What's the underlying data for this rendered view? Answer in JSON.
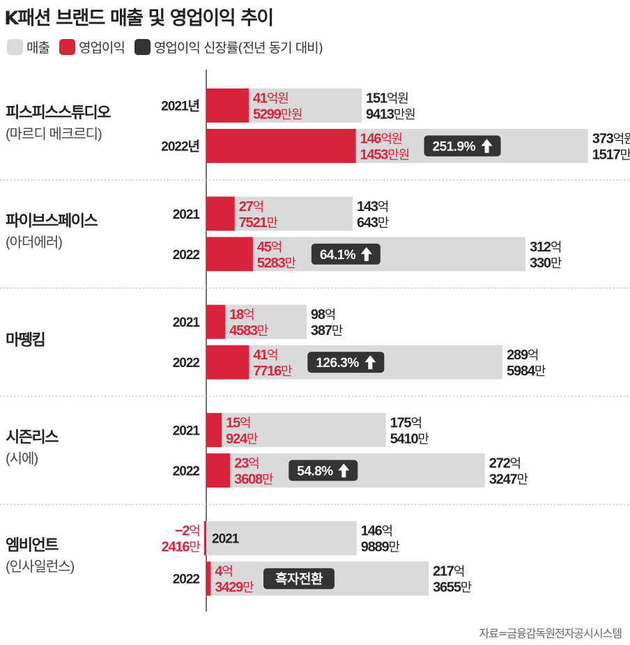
{
  "title": "K패션 브랜드 매출 및 영업이익 추이",
  "legend": [
    {
      "label": "매출",
      "color": "#dadada"
    },
    {
      "label": "영업이익",
      "color": "#d9223b"
    },
    {
      "label": "영업이익 신장률(전년 동기 대비)",
      "color": "#333333"
    }
  ],
  "source": "자료=금융감독원전자공시시스템",
  "chart_data": {
    "type": "bar",
    "orientation": "horizontal",
    "unit": "억원",
    "grid": false,
    "legend_position": "top-left",
    "groups": [
      {
        "company": "피스피스스튜디오",
        "brand": "(마르디 메크르디)",
        "rows": [
          {
            "year": "2021년",
            "revenue": 151.9413,
            "operating_profit": 41.5299,
            "revenue_label": [
              "151",
              "억원",
              "9413",
              "만원"
            ],
            "profit_label": [
              "41",
              "억원",
              "5299",
              "만원"
            ],
            "growth": null
          },
          {
            "year": "2022년",
            "revenue": 373.1517,
            "operating_profit": 146.1453,
            "revenue_label": [
              "373",
              "억원",
              "1517",
              "만원"
            ],
            "profit_label": [
              "146",
              "억원",
              "1453",
              "만원"
            ],
            "growth": "251.9%"
          }
        ]
      },
      {
        "company": "파이브스페이스",
        "brand": "(아더에러)",
        "rows": [
          {
            "year": "2021",
            "revenue": 143.0643,
            "operating_profit": 27.7521,
            "revenue_label": [
              "143",
              "억",
              "643",
              "만"
            ],
            "profit_label": [
              "27",
              "억",
              "7521",
              "만"
            ],
            "growth": null
          },
          {
            "year": "2022",
            "revenue": 312.033,
            "operating_profit": 45.5283,
            "revenue_label": [
              "312",
              "억",
              "330",
              "만"
            ],
            "profit_label": [
              "45",
              "억",
              "5283",
              "만"
            ],
            "growth": "64.1%"
          }
        ]
      },
      {
        "company": "마뗑킴",
        "brand": "",
        "rows": [
          {
            "year": "2021",
            "revenue": 98.0387,
            "operating_profit": 18.4583,
            "revenue_label": [
              "98",
              "억",
              "387",
              "만"
            ],
            "profit_label": [
              "18",
              "억",
              "4583",
              "만"
            ],
            "growth": null
          },
          {
            "year": "2022",
            "revenue": 289.5984,
            "operating_profit": 41.7716,
            "revenue_label": [
              "289",
              "억",
              "5984",
              "만"
            ],
            "profit_label": [
              "41",
              "억",
              "7716",
              "만"
            ],
            "growth": "126.3%"
          }
        ]
      },
      {
        "company": "시즌리스",
        "brand": "(시에)",
        "rows": [
          {
            "year": "2021",
            "revenue": 175.541,
            "operating_profit": 15.0924,
            "revenue_label": [
              "175",
              "억",
              "5410",
              "만"
            ],
            "profit_label": [
              "15",
              "억",
              "924",
              "만"
            ],
            "growth": null
          },
          {
            "year": "2022",
            "revenue": 272.3247,
            "operating_profit": 23.3608,
            "revenue_label": [
              "272",
              "억",
              "3247",
              "만"
            ],
            "profit_label": [
              "23",
              "억",
              "3608",
              "만"
            ],
            "growth": "54.8%"
          }
        ]
      },
      {
        "company": "엠비언트",
        "brand": "(인사일런스)",
        "rows": [
          {
            "year": "2021",
            "revenue": 146.9889,
            "operating_profit": -2.2416,
            "revenue_label": [
              "146",
              "억",
              "9889",
              "만"
            ],
            "profit_label": [
              "−2",
              "억",
              "2416",
              "만"
            ],
            "growth": null
          },
          {
            "year": "2022",
            "revenue": 217.3655,
            "operating_profit": 4.3429,
            "revenue_label": [
              "217",
              "억",
              "3655",
              "만"
            ],
            "profit_label": [
              "4",
              "억",
              "3429",
              "만"
            ],
            "growth": null,
            "note": "흑자전환"
          }
        ]
      }
    ]
  }
}
